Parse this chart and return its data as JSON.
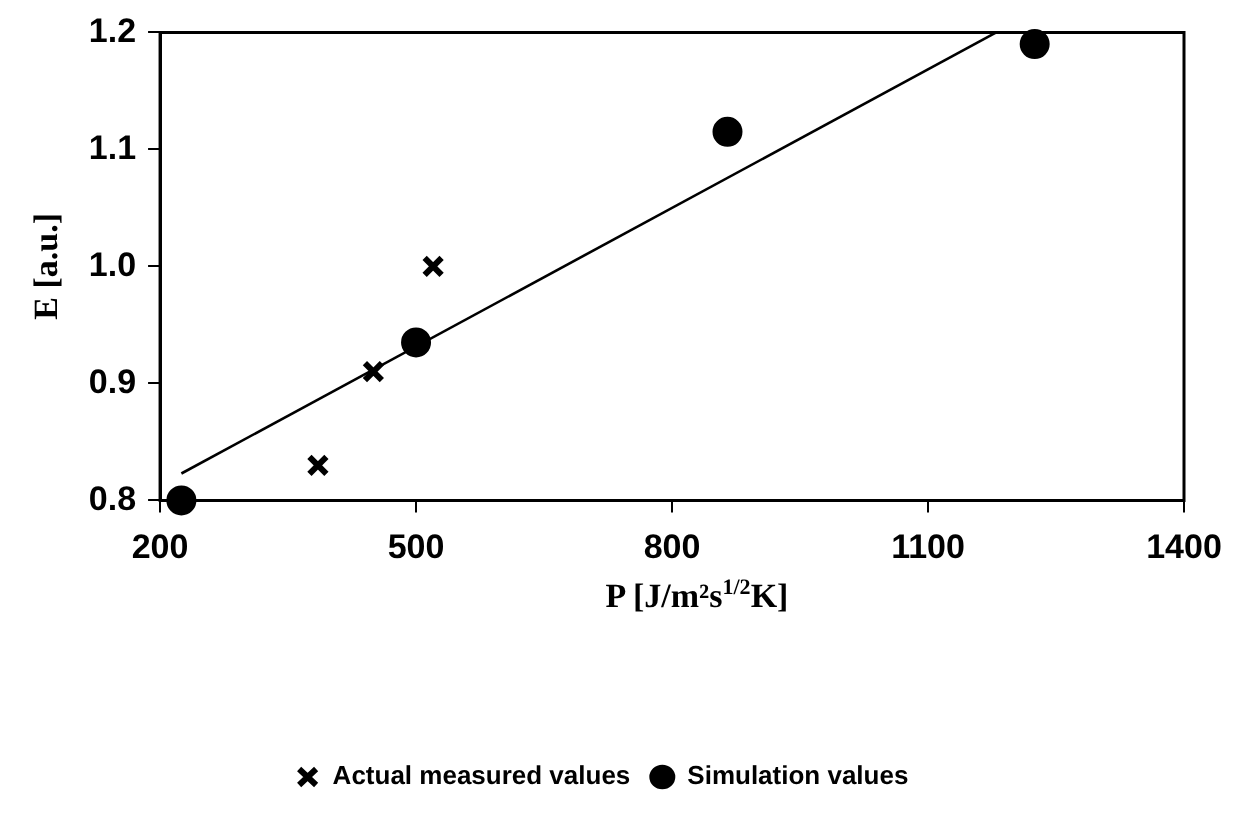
{
  "chart_data": {
    "type": "scatter",
    "xlabel": "P [J/m²s$^{1/2}$K]",
    "ylabel": "E [a.u.]",
    "xlim": [
      200,
      1400
    ],
    "xticks": [
      200,
      500,
      800,
      1100,
      1400
    ],
    "ylim": [
      0.8,
      1.2
    ],
    "yticks": [
      0.8,
      0.9,
      {
        "value": 1,
        "label": "1.0"
      },
      1.1,
      1.2
    ],
    "grid": false,
    "legend": "bottom",
    "series": [
      {
        "name": "Actual measured values",
        "color": "#000000",
        "marker": "cross",
        "x": [
          385,
          450,
          520
        ],
        "values": [
          0.83,
          0.91,
          1.0
        ]
      },
      {
        "name": "Simulation values",
        "color": "#000000",
        "marker": "circle",
        "x": [
          225,
          500,
          865,
          1225
        ],
        "values": [
          0.8,
          0.935,
          1.115,
          1.19
        ]
      },
      {
        "type": "line",
        "color": "#000000",
        "marker": "none",
        "x": [
          225,
          1180
        ],
        "values": [
          0.823,
          1.2
        ]
      }
    ]
  }
}
